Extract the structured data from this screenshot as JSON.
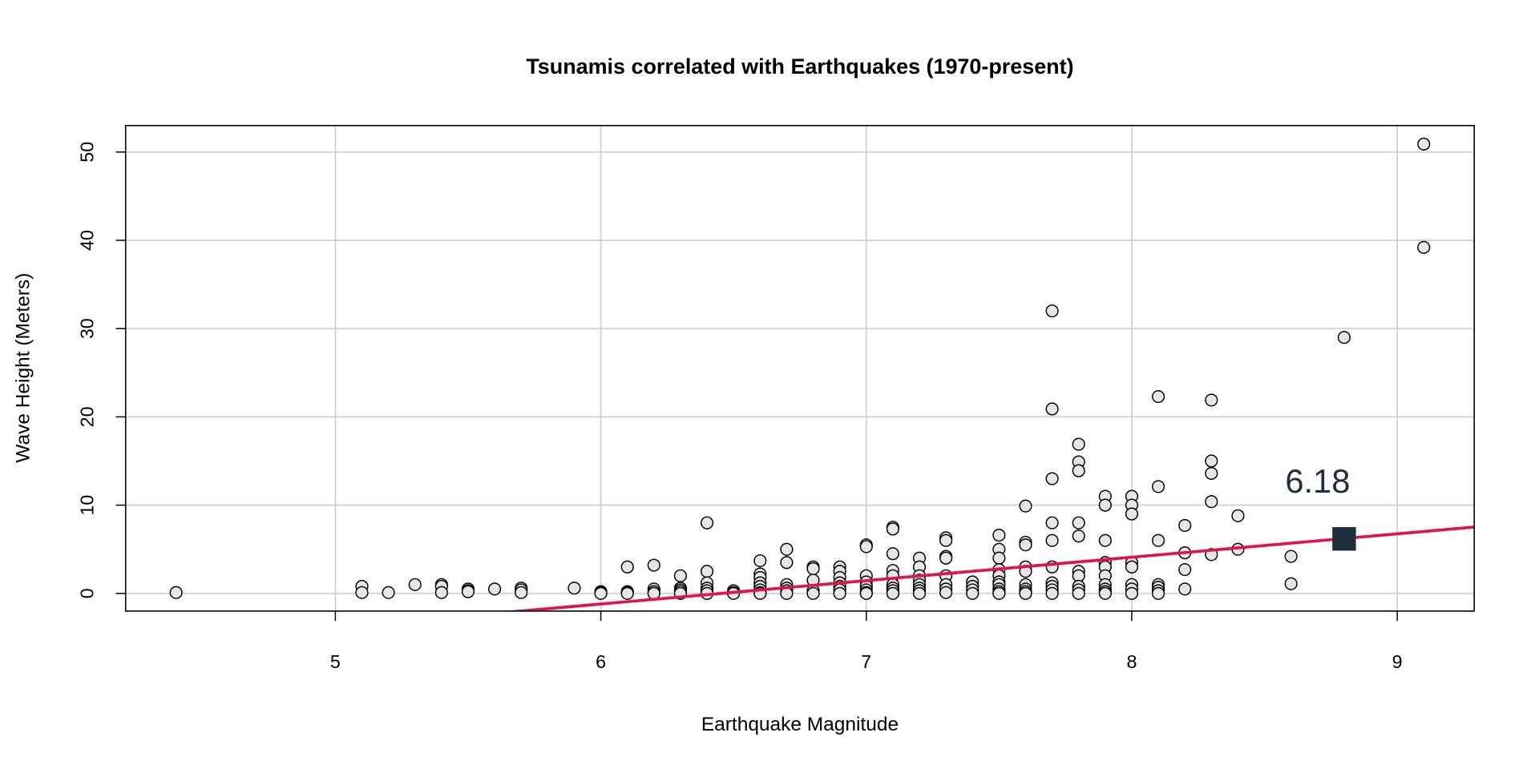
{
  "chart_data": {
    "type": "scatter",
    "title": "Tsunamis correlated with Earthquakes (1970-present)",
    "xlabel": "Earthquake Magnitude",
    "ylabel": "Wave Height (Meters)",
    "xlim": [
      4.21,
      9.29
    ],
    "ylim": [
      -2,
      53
    ],
    "xticks": [
      5,
      6,
      7,
      8,
      9
    ],
    "yticks": [
      0,
      10,
      20,
      30,
      40,
      50
    ],
    "grid": true,
    "colors": {
      "points_fill": "#e6e6e6",
      "points_stroke": "#000000",
      "regression": "#e0134f",
      "marker": "#1f2d3d",
      "grid": "#cfcfcf"
    },
    "regression": {
      "intercept": -17.1,
      "slope": 2.65
    },
    "highlight": {
      "x": 8.8,
      "y": 6.18,
      "label": "6.18"
    },
    "points": [
      [
        4.4,
        0.1
      ],
      [
        5.1,
        0.8
      ],
      [
        5.1,
        0.1
      ],
      [
        5.2,
        0.1
      ],
      [
        5.3,
        1.0
      ],
      [
        5.4,
        1.0
      ],
      [
        5.4,
        0.8
      ],
      [
        5.4,
        0.1
      ],
      [
        5.5,
        0.5
      ],
      [
        5.5,
        0.3
      ],
      [
        5.5,
        0.2
      ],
      [
        5.6,
        0.5
      ],
      [
        5.7,
        0.6
      ],
      [
        5.7,
        0.4
      ],
      [
        5.7,
        0.1
      ],
      [
        5.9,
        0.6
      ],
      [
        6.0,
        0.2
      ],
      [
        6.0,
        0.1
      ],
      [
        6.0,
        0
      ],
      [
        6.1,
        3.0
      ],
      [
        6.1,
        0.2
      ],
      [
        6.1,
        0.1
      ],
      [
        6.1,
        0
      ],
      [
        6.2,
        3.2
      ],
      [
        6.2,
        0.5
      ],
      [
        6.2,
        0.2
      ],
      [
        6.2,
        0
      ],
      [
        6.3,
        2.0
      ],
      [
        6.3,
        0.6
      ],
      [
        6.3,
        0.4
      ],
      [
        6.3,
        0.2
      ],
      [
        6.3,
        0
      ],
      [
        6.4,
        8.0
      ],
      [
        6.4,
        2.5
      ],
      [
        6.4,
        1.2
      ],
      [
        6.4,
        0.6
      ],
      [
        6.4,
        0.3
      ],
      [
        6.4,
        0
      ],
      [
        6.5,
        0.3
      ],
      [
        6.5,
        0.1
      ],
      [
        6.5,
        0
      ],
      [
        6.6,
        3.7
      ],
      [
        6.6,
        2.2
      ],
      [
        6.6,
        1.8
      ],
      [
        6.6,
        1.2
      ],
      [
        6.6,
        0.8
      ],
      [
        6.6,
        0.4
      ],
      [
        6.6,
        0.1
      ],
      [
        6.6,
        0
      ],
      [
        6.7,
        5.0
      ],
      [
        6.7,
        3.5
      ],
      [
        6.7,
        1.0
      ],
      [
        6.7,
        0.6
      ],
      [
        6.7,
        0.3
      ],
      [
        6.7,
        0
      ],
      [
        6.8,
        3.0
      ],
      [
        6.8,
        2.8
      ],
      [
        6.8,
        1.5
      ],
      [
        6.8,
        0.3
      ],
      [
        6.8,
        0
      ],
      [
        6.9,
        3.0
      ],
      [
        6.9,
        2.5
      ],
      [
        6.9,
        1.8
      ],
      [
        6.9,
        1.2
      ],
      [
        6.9,
        0.8
      ],
      [
        6.9,
        0.4
      ],
      [
        6.9,
        0
      ],
      [
        7.0,
        5.5
      ],
      [
        7.0,
        5.3
      ],
      [
        7.0,
        2.0
      ],
      [
        7.0,
        1.3
      ],
      [
        7.0,
        0.8
      ],
      [
        7.0,
        0.4
      ],
      [
        7.0,
        0.1
      ],
      [
        7.0,
        0
      ],
      [
        7.1,
        7.5
      ],
      [
        7.1,
        7.3
      ],
      [
        7.1,
        4.5
      ],
      [
        7.1,
        2.6
      ],
      [
        7.1,
        2.0
      ],
      [
        7.1,
        1.0
      ],
      [
        7.1,
        0.6
      ],
      [
        7.1,
        0.3
      ],
      [
        7.1,
        0
      ],
      [
        7.2,
        4.0
      ],
      [
        7.2,
        3.0
      ],
      [
        7.2,
        2.0
      ],
      [
        7.2,
        1.5
      ],
      [
        7.2,
        1.0
      ],
      [
        7.2,
        0.6
      ],
      [
        7.2,
        0.3
      ],
      [
        7.2,
        0
      ],
      [
        7.3,
        6.3
      ],
      [
        7.3,
        6.0
      ],
      [
        7.3,
        4.2
      ],
      [
        7.3,
        4.0
      ],
      [
        7.3,
        2.0
      ],
      [
        7.3,
        1.0
      ],
      [
        7.3,
        0.5
      ],
      [
        7.3,
        0.1
      ],
      [
        7.4,
        1.3
      ],
      [
        7.4,
        0.8
      ],
      [
        7.4,
        0.4
      ],
      [
        7.4,
        0
      ],
      [
        7.5,
        6.6
      ],
      [
        7.5,
        5.0
      ],
      [
        7.5,
        4.0
      ],
      [
        7.5,
        2.7
      ],
      [
        7.5,
        2.0
      ],
      [
        7.5,
        1.3
      ],
      [
        7.5,
        1.0
      ],
      [
        7.5,
        0.5
      ],
      [
        7.5,
        0.2
      ],
      [
        7.5,
        0
      ],
      [
        7.6,
        9.9
      ],
      [
        7.6,
        5.8
      ],
      [
        7.6,
        5.5
      ],
      [
        7.6,
        3.0
      ],
      [
        7.6,
        2.5
      ],
      [
        7.6,
        1.0
      ],
      [
        7.6,
        0.5
      ],
      [
        7.6,
        0.2
      ],
      [
        7.6,
        0
      ],
      [
        7.7,
        32
      ],
      [
        7.7,
        20.9
      ],
      [
        7.7,
        13
      ],
      [
        7.7,
        8
      ],
      [
        7.7,
        6
      ],
      [
        7.7,
        3
      ],
      [
        7.7,
        1.2
      ],
      [
        7.7,
        0.8
      ],
      [
        7.7,
        0.4
      ],
      [
        7.7,
        0
      ],
      [
        7.8,
        16.9
      ],
      [
        7.8,
        14.9
      ],
      [
        7.8,
        13.9
      ],
      [
        7.8,
        8
      ],
      [
        7.8,
        6.5
      ],
      [
        7.8,
        2.5
      ],
      [
        7.8,
        2.0
      ],
      [
        7.8,
        0.8
      ],
      [
        7.8,
        0.4
      ],
      [
        7.8,
        0
      ],
      [
        7.9,
        11
      ],
      [
        7.9,
        10
      ],
      [
        7.9,
        6
      ],
      [
        7.9,
        3.5
      ],
      [
        7.9,
        3.0
      ],
      [
        7.9,
        2.0
      ],
      [
        7.9,
        1.0
      ],
      [
        7.9,
        0.5
      ],
      [
        7.9,
        0.2
      ],
      [
        7.9,
        0
      ],
      [
        8.0,
        11
      ],
      [
        8.0,
        10
      ],
      [
        8.0,
        9
      ],
      [
        8.0,
        3.5
      ],
      [
        8.0,
        3.0
      ],
      [
        8.0,
        1.0
      ],
      [
        8.0,
        0.5
      ],
      [
        8.0,
        0
      ],
      [
        8.1,
        22.3
      ],
      [
        8.1,
        12.1
      ],
      [
        8.1,
        6
      ],
      [
        8.1,
        1.0
      ],
      [
        8.1,
        0.7
      ],
      [
        8.1,
        0.3
      ],
      [
        8.1,
        0
      ],
      [
        8.2,
        7.7
      ],
      [
        8.2,
        4.6
      ],
      [
        8.2,
        2.7
      ],
      [
        8.2,
        0.5
      ],
      [
        8.3,
        21.9
      ],
      [
        8.3,
        15
      ],
      [
        8.3,
        13.6
      ],
      [
        8.3,
        10.4
      ],
      [
        8.3,
        4.4
      ],
      [
        8.4,
        8.8
      ],
      [
        8.4,
        5.0
      ],
      [
        8.6,
        4.2
      ],
      [
        8.6,
        1.1
      ],
      [
        8.8,
        29
      ],
      [
        9.1,
        50.9
      ],
      [
        9.1,
        39.2
      ]
    ]
  }
}
